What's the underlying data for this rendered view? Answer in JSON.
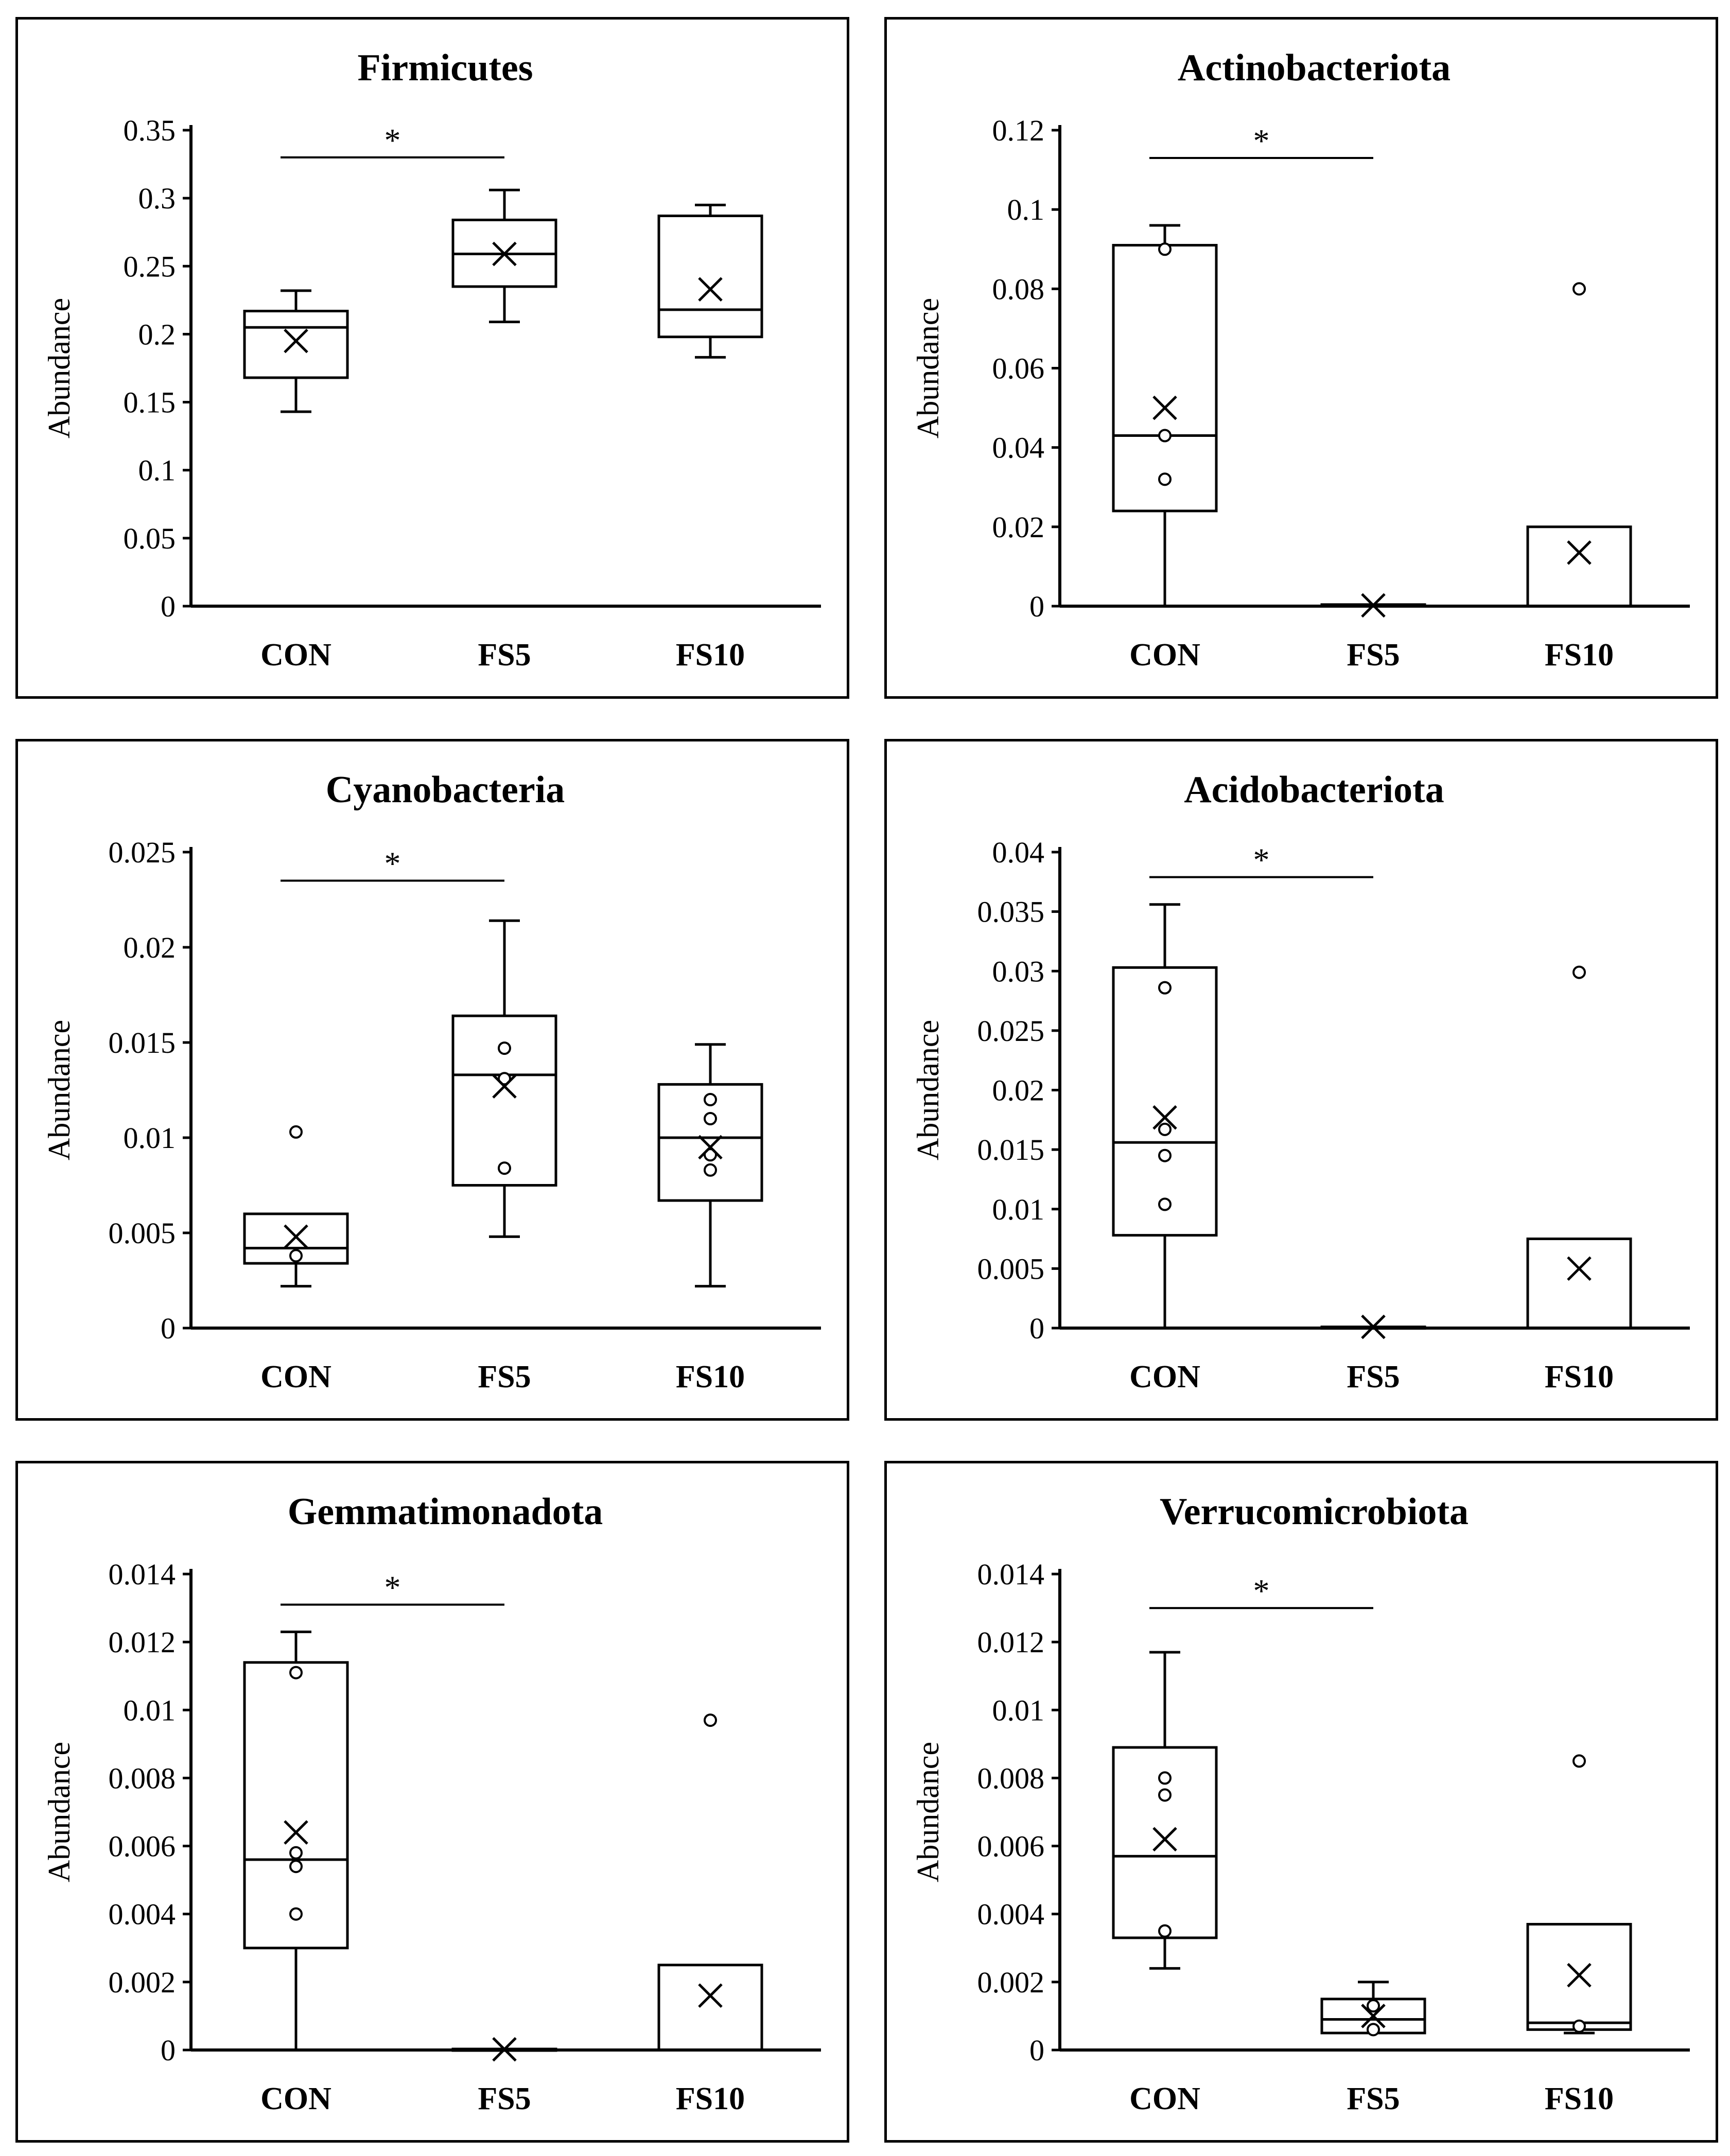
{
  "ylabel": "Abundance",
  "chart_data": [
    {
      "type": "box",
      "title": "Firmicutes",
      "categories": [
        "CON",
        "FS5",
        "FS10"
      ],
      "ylabel": "Abundance",
      "ylim": [
        0,
        0.35
      ],
      "yticks": [
        0,
        0.05,
        0.1,
        0.15,
        0.2,
        0.25,
        0.3,
        0.35
      ],
      "ytick_labels": [
        "0",
        "0.05",
        "0.1",
        "0.15",
        "0.2",
        "0.25",
        "0.3",
        "0.35"
      ],
      "significance": {
        "from": "CON",
        "to": "FS5",
        "label": "*",
        "y": 0.33
      },
      "boxes": [
        {
          "category": "CON",
          "min": 0.143,
          "q1": 0.168,
          "median": 0.205,
          "q3": 0.217,
          "max": 0.232,
          "mean": 0.195,
          "points": []
        },
        {
          "category": "FS5",
          "min": 0.209,
          "q1": 0.235,
          "median": 0.259,
          "q3": 0.284,
          "max": 0.306,
          "mean": 0.259,
          "points": []
        },
        {
          "category": "FS10",
          "min": 0.183,
          "q1": 0.198,
          "median": 0.218,
          "q3": 0.287,
          "max": 0.295,
          "mean": 0.233,
          "points": []
        }
      ]
    },
    {
      "type": "box",
      "title": "Actinobacteriota",
      "categories": [
        "CON",
        "FS5",
        "FS10"
      ],
      "ylabel": "Abundance",
      "ylim": [
        0,
        0.12
      ],
      "yticks": [
        0,
        0.02,
        0.04,
        0.06,
        0.08,
        0.1,
        0.12
      ],
      "ytick_labels": [
        "0",
        "0.02",
        "0.04",
        "0.06",
        "0.08",
        "0.1",
        "0.12"
      ],
      "significance": {
        "from": "CON",
        "to": "FS5",
        "label": "*",
        "y": 0.113
      },
      "boxes": [
        {
          "category": "CON",
          "min": 0,
          "q1": 0.024,
          "median": 0.043,
          "q3": 0.091,
          "max": 0.096,
          "mean": 0.05,
          "points": [
            0.09,
            0.043,
            0.032
          ]
        },
        {
          "category": "FS5",
          "min": 0,
          "q1": 0,
          "median": 0,
          "q3": 0.0004,
          "max": 0.0004,
          "mean": 0.0002,
          "points": []
        },
        {
          "category": "FS10",
          "min": 0,
          "q1": 0,
          "median": 0,
          "q3": 0.02,
          "max": 0.02,
          "mean": 0.0135,
          "points": [
            0.08
          ]
        }
      ]
    },
    {
      "type": "box",
      "title": "Cyanobacteria",
      "categories": [
        "CON",
        "FS5",
        "FS10"
      ],
      "ylabel": "Abundance",
      "ylim": [
        0,
        0.025
      ],
      "yticks": [
        0,
        0.005,
        0.01,
        0.015,
        0.02,
        0.025
      ],
      "ytick_labels": [
        "0",
        "0.005",
        "0.01",
        "0.015",
        "0.02",
        "0.025"
      ],
      "significance": {
        "from": "CON",
        "to": "FS5",
        "label": "*",
        "y": 0.0235
      },
      "boxes": [
        {
          "category": "CON",
          "min": 0.0022,
          "q1": 0.0034,
          "median": 0.0042,
          "q3": 0.006,
          "max": 0.006,
          "mean": 0.0048,
          "points": [
            0.0103,
            0.0038
          ]
        },
        {
          "category": "FS5",
          "min": 0.0048,
          "q1": 0.0075,
          "median": 0.0133,
          "q3": 0.0164,
          "max": 0.0214,
          "mean": 0.0127,
          "points": [
            0.0147,
            0.0131,
            0.0084
          ]
        },
        {
          "category": "FS10",
          "min": 0.0022,
          "q1": 0.0067,
          "median": 0.01,
          "q3": 0.0128,
          "max": 0.0149,
          "mean": 0.0095,
          "points": [
            0.012,
            0.011,
            0.0091,
            0.0083
          ]
        }
      ]
    },
    {
      "type": "box",
      "title": "Acidobacteriota",
      "categories": [
        "CON",
        "FS5",
        "FS10"
      ],
      "ylabel": "Abundance",
      "ylim": [
        0,
        0.04
      ],
      "yticks": [
        0,
        0.005,
        0.01,
        0.015,
        0.02,
        0.025,
        0.03,
        0.035,
        0.04
      ],
      "ytick_labels": [
        "0",
        "0.005",
        "0.01",
        "0.015",
        "0.02",
        "0.025",
        "0.03",
        "0.035",
        "0.04"
      ],
      "significance": {
        "from": "CON",
        "to": "FS5",
        "label": "*",
        "y": 0.0379
      },
      "boxes": [
        {
          "category": "CON",
          "min": 0,
          "q1": 0.0078,
          "median": 0.0156,
          "q3": 0.0303,
          "max": 0.0356,
          "mean": 0.0177,
          "points": [
            0.0286,
            0.0167,
            0.0145,
            0.0104
          ]
        },
        {
          "category": "FS5",
          "min": 0,
          "q1": 0,
          "median": 0,
          "q3": 0.0001,
          "max": 0.0001,
          "mean": 0.0001,
          "points": []
        },
        {
          "category": "FS10",
          "min": 0,
          "q1": 0,
          "median": 0,
          "q3": 0.0075,
          "max": 0.0075,
          "mean": 0.005,
          "points": [
            0.0299
          ]
        }
      ]
    },
    {
      "type": "box",
      "title": "Gemmatimonadota",
      "categories": [
        "CON",
        "FS5",
        "FS10"
      ],
      "ylabel": "Abundance",
      "ylim": [
        0,
        0.014
      ],
      "yticks": [
        0,
        0.002,
        0.004,
        0.006,
        0.008,
        0.01,
        0.012,
        0.014
      ],
      "ytick_labels": [
        "0",
        "0.002",
        "0.004",
        "0.006",
        "0.008",
        "0.01",
        "0.012",
        "0.014"
      ],
      "significance": {
        "from": "CON",
        "to": "FS5",
        "label": "*",
        "y": 0.0131
      },
      "boxes": [
        {
          "category": "CON",
          "min": 0,
          "q1": 0.003,
          "median": 0.0056,
          "q3": 0.0114,
          "max": 0.0123,
          "mean": 0.0064,
          "points": [
            0.0111,
            0.0058,
            0.0054,
            0.004
          ]
        },
        {
          "category": "FS5",
          "min": 0,
          "q1": 0,
          "median": 0,
          "q3": 3e-05,
          "max": 3e-05,
          "mean": 2e-05,
          "points": []
        },
        {
          "category": "FS10",
          "min": 0,
          "q1": 0,
          "median": 0,
          "q3": 0.0025,
          "max": 0.0025,
          "mean": 0.0016,
          "points": [
            0.0097
          ]
        }
      ]
    },
    {
      "type": "box",
      "title": "Verrucomicrobiota",
      "categories": [
        "CON",
        "FS5",
        "FS10"
      ],
      "ylabel": "Abundance",
      "ylim": [
        0,
        0.014
      ],
      "yticks": [
        0,
        0.002,
        0.004,
        0.006,
        0.008,
        0.01,
        0.012,
        0.014
      ],
      "ytick_labels": [
        "0",
        "0.002",
        "0.004",
        "0.006",
        "0.008",
        "0.01",
        "0.012",
        "0.014"
      ],
      "significance": {
        "from": "CON",
        "to": "FS5",
        "label": "*",
        "y": 0.013
      },
      "boxes": [
        {
          "category": "CON",
          "min": 0.0024,
          "q1": 0.0033,
          "median": 0.0057,
          "q3": 0.0089,
          "max": 0.0117,
          "mean": 0.0062,
          "points": [
            0.008,
            0.0075,
            0.0035
          ]
        },
        {
          "category": "FS5",
          "min": 0.0005,
          "q1": 0.0005,
          "median": 0.0009,
          "q3": 0.0015,
          "max": 0.002,
          "mean": 0.001,
          "points": [
            0.0013,
            0.0006
          ]
        },
        {
          "category": "FS10",
          "min": 0.0005,
          "q1": 0.0006,
          "median": 0.0008,
          "q3": 0.0037,
          "max": 0.0037,
          "mean": 0.0022,
          "points": [
            0.0085,
            0.0007
          ]
        }
      ]
    }
  ]
}
